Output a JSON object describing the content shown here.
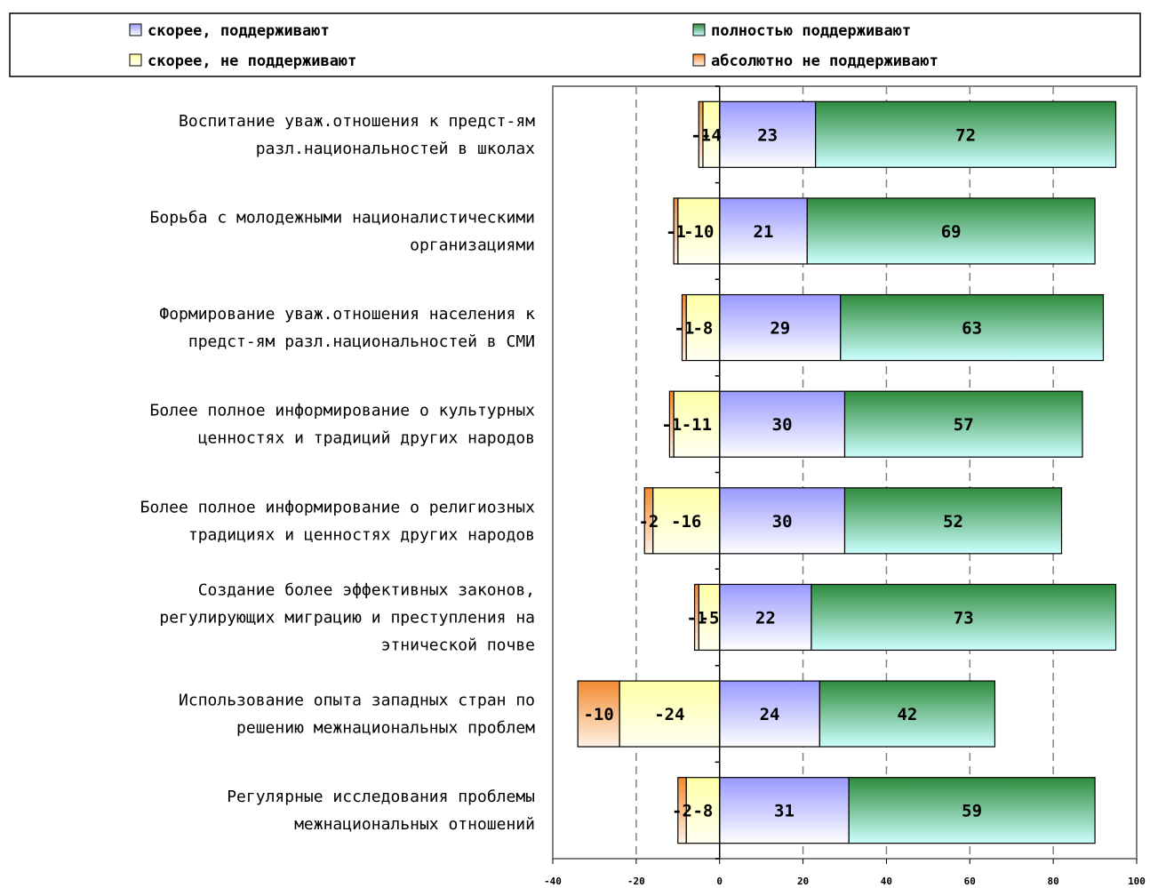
{
  "chart_data": {
    "type": "bar",
    "orientation": "horizontal",
    "stacked": "diverging",
    "categories": [
      [
        "Воспитание уваж.отношения к предст-ям",
        "разл.национальностей в школах"
      ],
      [
        "Борьба с молодежными националистическими",
        "организациями"
      ],
      [
        "Формирование уваж.отношения населения к",
        "предст-ям разл.национальностей в СМИ"
      ],
      [
        "Более полное информирование о культурных",
        "ценностях и традиций других народов"
      ],
      [
        "Более полное информирование о религиозных",
        "традициях и ценностях других народов"
      ],
      [
        "Создание более эффективных законов,",
        "регулирующих миграцию и преступления на",
        "этнической почве"
      ],
      [
        "Использование опыта западных стран по",
        "решению межнациональных проблем"
      ],
      [
        "Регулярные исследования проблемы",
        "межнациональных отношений"
      ]
    ],
    "series": [
      {
        "name": "абсолютно не поддерживают",
        "values": [
          -1,
          -1,
          -1,
          -1,
          -2,
          -1,
          -10,
          -2
        ],
        "labels": [
          "-1",
          "-1",
          "-1",
          "-1",
          "-2",
          "-1",
          "-10",
          "-2"
        ],
        "colors": [
          "#f28a30",
          "#fff2e6"
        ]
      },
      {
        "name": "скорее, не поддерживают",
        "values": [
          -4,
          -10,
          -8,
          -11,
          -16,
          -5,
          -24,
          -8
        ],
        "labels": [
          "-4",
          "-10",
          "-8",
          "-11",
          "-16",
          "-5",
          "-24",
          "-8"
        ],
        "colors": [
          "#ffffa6",
          "#fffff2"
        ]
      },
      {
        "name": "скорее, поддерживают",
        "values": [
          23,
          21,
          29,
          30,
          30,
          22,
          24,
          31
        ],
        "labels": [
          "23",
          "21",
          "29",
          "30",
          "30",
          "22",
          "24",
          "31"
        ],
        "colors": [
          "#9999ff",
          "#ffffff"
        ]
      },
      {
        "name": "полностью поддерживают",
        "values": [
          72,
          69,
          63,
          57,
          52,
          73,
          42,
          59
        ],
        "labels": [
          "72",
          "69",
          "63",
          "57",
          "52",
          "73",
          "42",
          "59"
        ],
        "colors": [
          "#2e8b3c",
          "#ccffff"
        ]
      }
    ],
    "xlim": [
      -40,
      100
    ],
    "xticks": [
      -40,
      -20,
      0,
      20,
      40,
      60,
      80,
      100
    ],
    "xtick_labels": [
      "-40",
      "-20",
      "0",
      "20",
      "40",
      "60",
      "80",
      "100"
    ],
    "gridlines": "vertical dashed",
    "legend": {
      "position": "top",
      "order": [
        "скорее, поддерживают",
        "полностью поддерживают",
        "скорее, не поддерживают",
        "абсолютно не поддерживают"
      ]
    }
  }
}
